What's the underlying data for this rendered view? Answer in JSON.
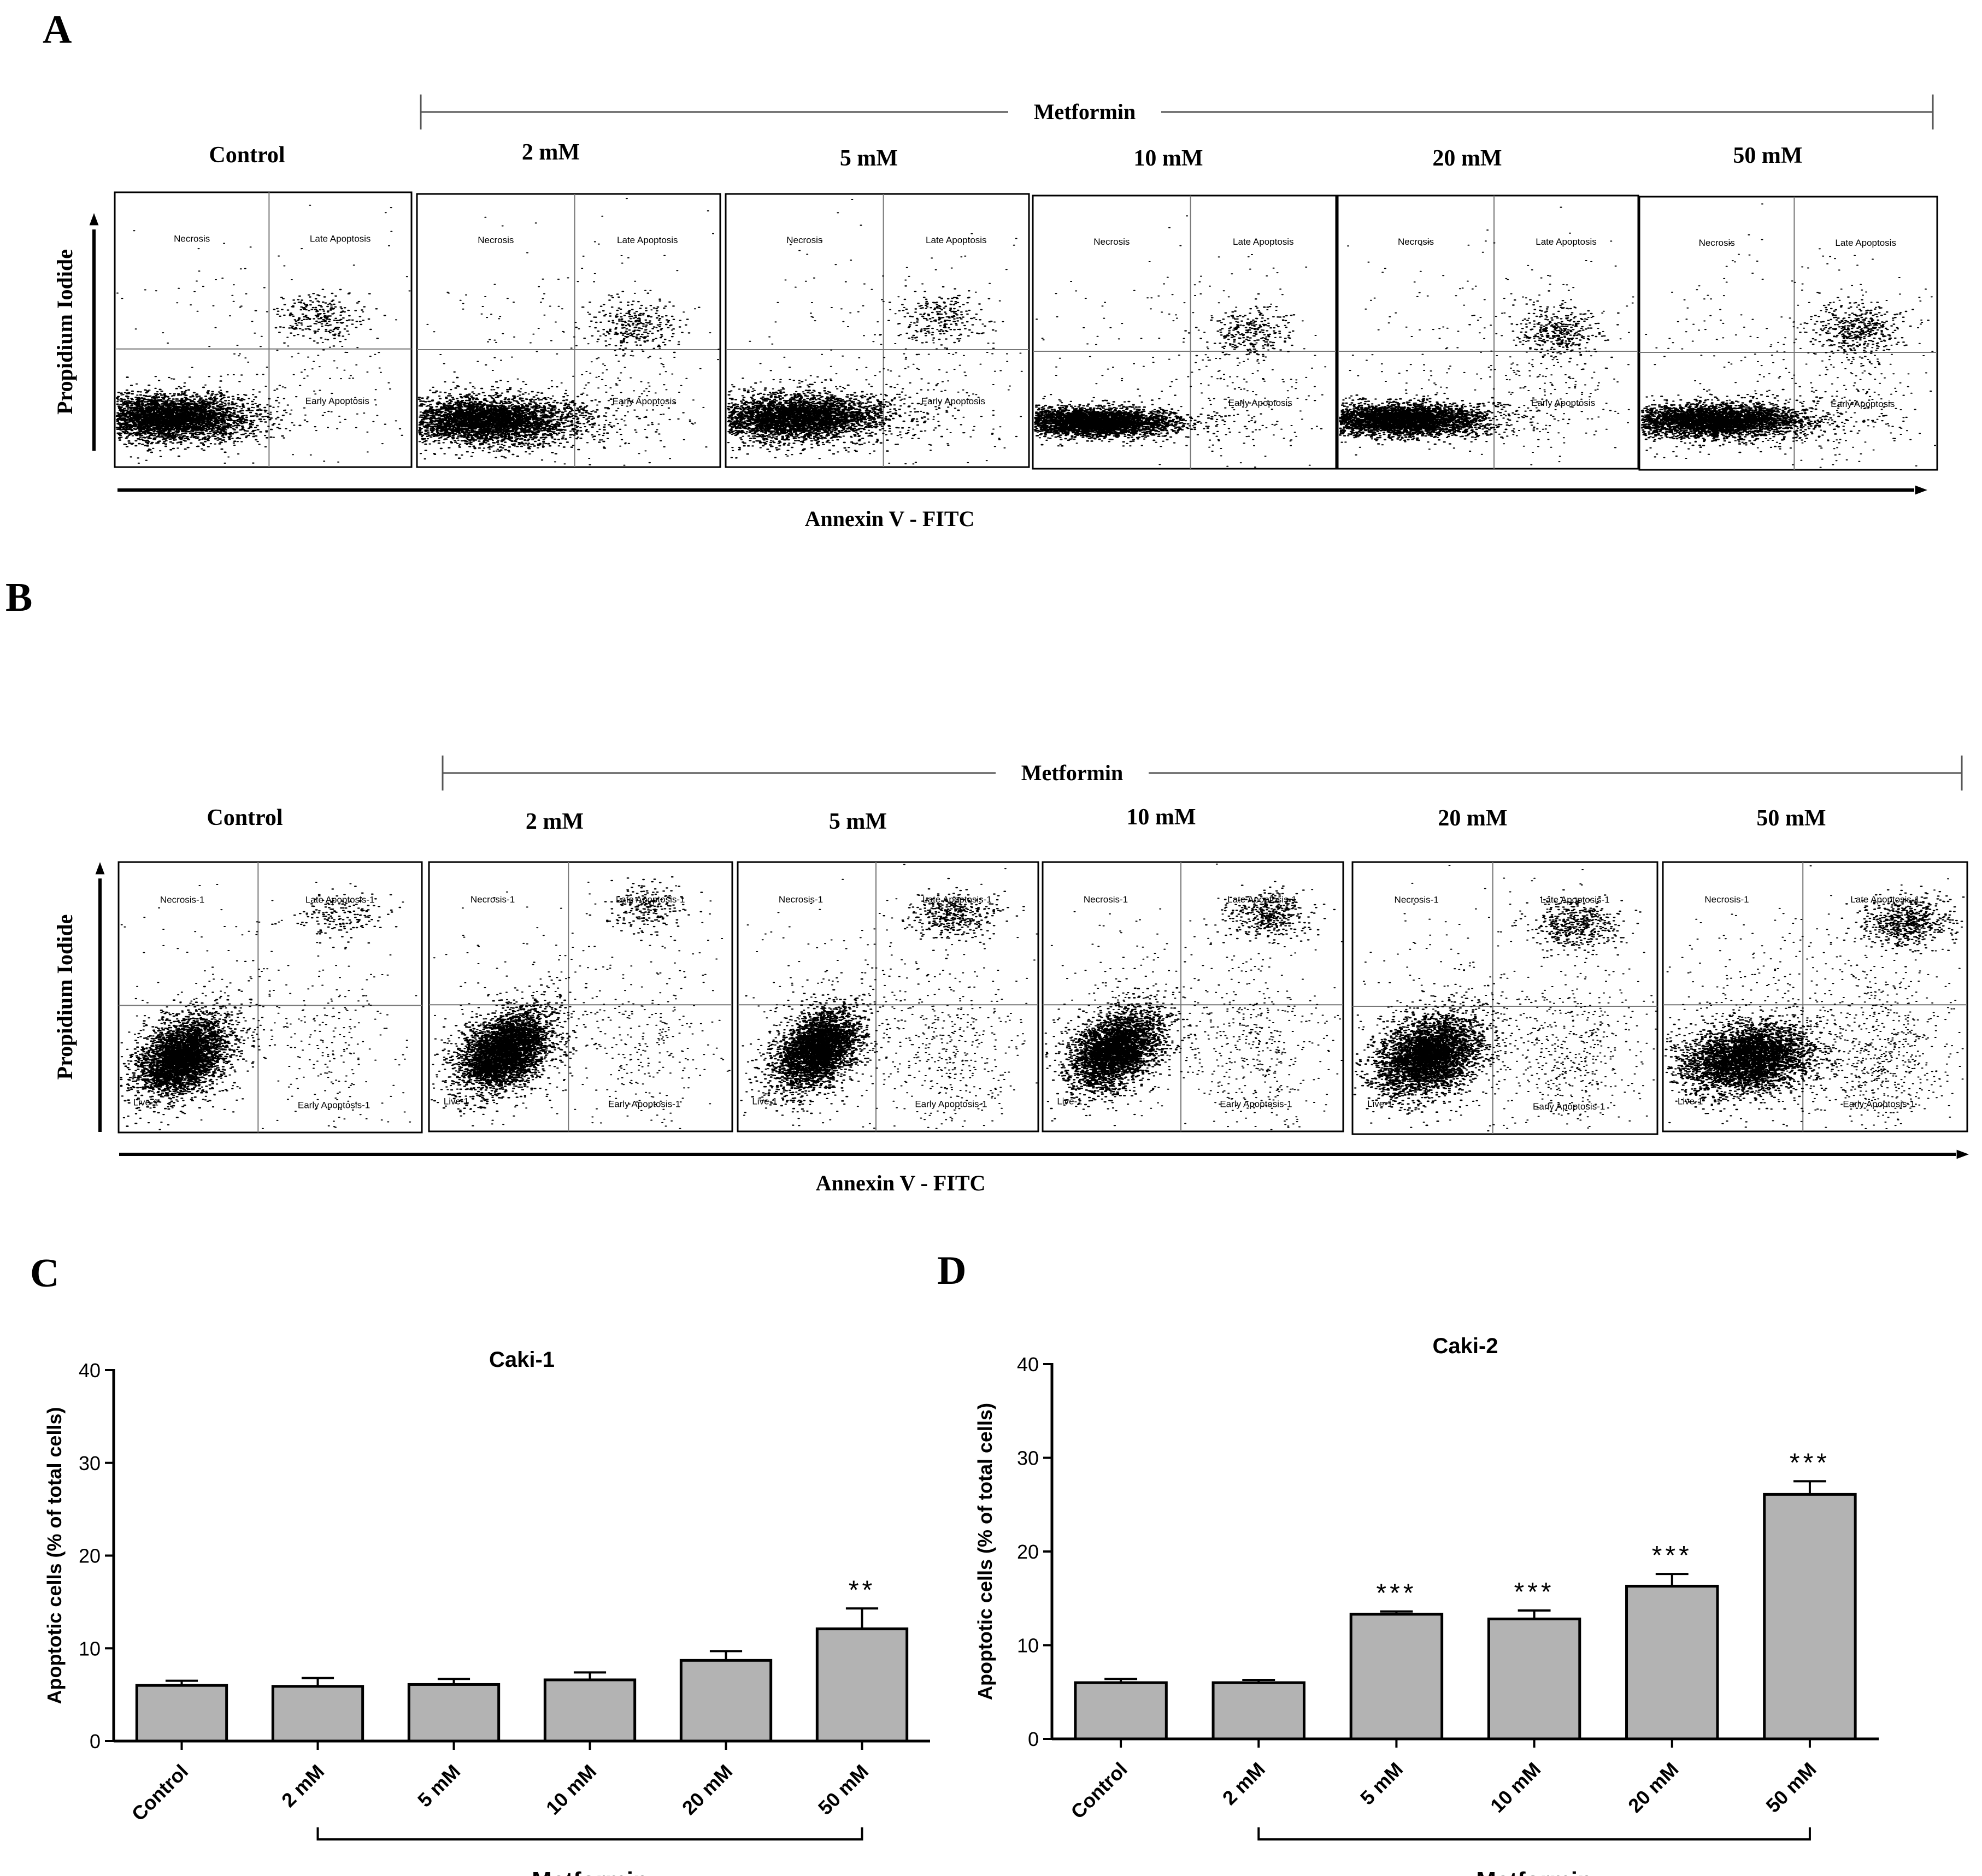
{
  "panels": {
    "A": {
      "letter": "A",
      "group_label": "Metformin",
      "x_axis_label": "Annexin V - FITC",
      "y_axis_label": "Propidium Iodide",
      "conditions": [
        "Control",
        "2 mM",
        "5 mM",
        "10 mM",
        "20 mM",
        "50 mM"
      ],
      "quadrants": {
        "top_left": "Necrosis",
        "top_right": "Late Apoptosis",
        "bottom_right": "Early Apoptosis"
      }
    },
    "B": {
      "letter": "B",
      "group_label": "Metformin",
      "x_axis_label": "Annexin V - FITC",
      "y_axis_label": "Propidium Iodide",
      "conditions": [
        "Control",
        "2 mM",
        "5 mM",
        "10 mM",
        "20 mM",
        "50 mM"
      ],
      "quadrants": {
        "top_left": "Necrosis-1",
        "top_right": "Late Apoptosis-1",
        "bottom_left": "Live-1",
        "bottom_right": "Early Apoptosis-1"
      }
    },
    "C": {
      "letter": "C"
    },
    "D": {
      "letter": "D"
    }
  },
  "chart_data": [
    {
      "id": "C",
      "type": "bar",
      "title": "Caki-1",
      "ylabel": "Apoptotic cells (% of total cells)",
      "xlabel": "",
      "group_label": "Metformin",
      "ylim": [
        0,
        40
      ],
      "yticks": [
        0,
        10,
        20,
        30,
        40
      ],
      "categories": [
        "Control",
        "2 mM",
        "5 mM",
        "10 mM",
        "20 mM",
        "50 mM"
      ],
      "values": [
        6.0,
        5.9,
        6.1,
        6.6,
        8.7,
        12.1
      ],
      "errors": [
        0.5,
        0.9,
        0.6,
        0.8,
        1.0,
        2.2
      ],
      "significance": [
        "",
        "",
        "",
        "",
        "",
        "**"
      ],
      "bar_color": "#b3b3b3"
    },
    {
      "id": "D",
      "type": "bar",
      "title": "Caki-2",
      "ylabel": "Apoptotic cells (% of total cells)",
      "xlabel": "",
      "group_label": "Metformin",
      "ylim": [
        0,
        40
      ],
      "yticks": [
        0,
        10,
        20,
        30,
        40
      ],
      "categories": [
        "Control",
        "2 mM",
        "5 mM",
        "10 mM",
        "20 mM",
        "50 mM"
      ],
      "values": [
        6.0,
        6.0,
        13.3,
        12.8,
        16.3,
        26.1
      ],
      "errors": [
        0.4,
        0.3,
        0.3,
        0.9,
        1.3,
        1.4
      ],
      "significance": [
        "",
        "",
        "***",
        "***",
        "***",
        "***"
      ],
      "bar_color": "#b3b3b3"
    }
  ]
}
